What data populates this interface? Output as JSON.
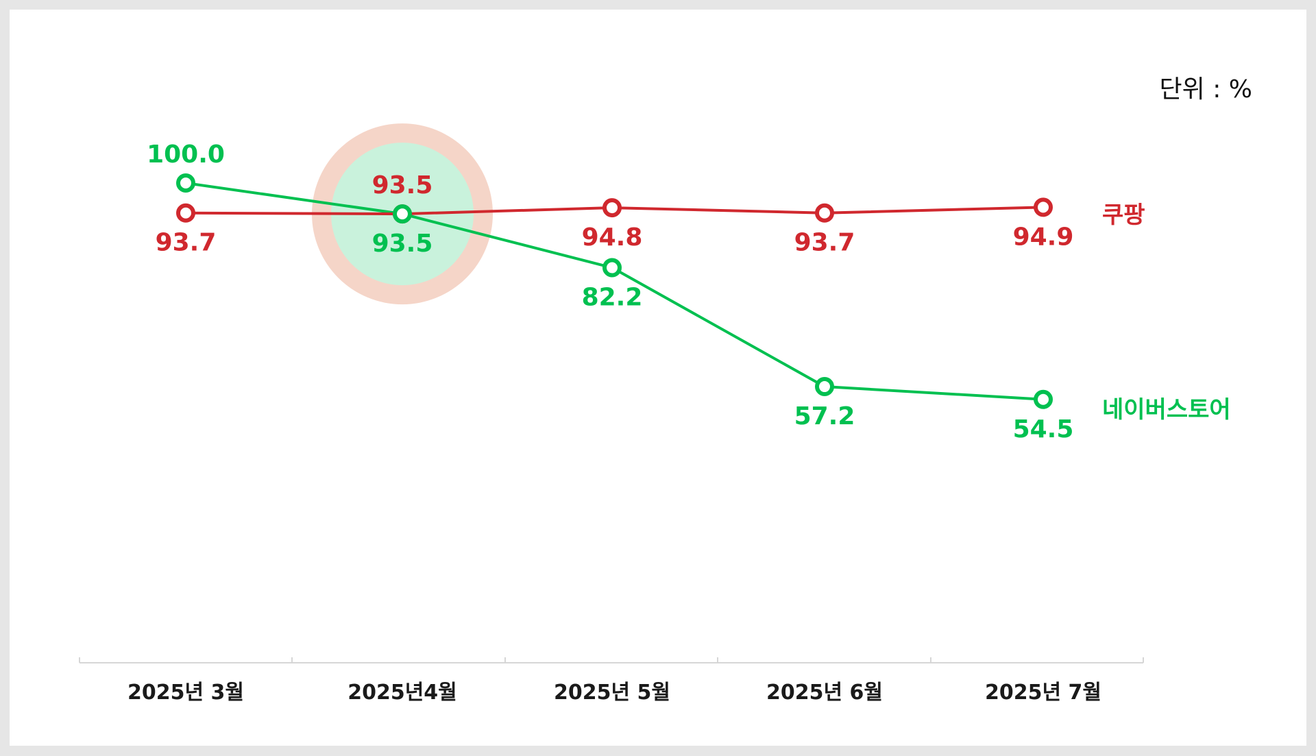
{
  "chart_data": {
    "type": "line",
    "unit_label": "단위 : %",
    "categories": [
      "2025년 3월",
      "2025년4월",
      "2025년 5월",
      "2025년 6월",
      "2025년 7월"
    ],
    "series": [
      {
        "name": "쿠팡",
        "color": "#d0282e",
        "values": [
          93.7,
          93.5,
          94.8,
          93.7,
          94.9
        ],
        "value_labels": [
          "93.7",
          "93.5",
          "94.8",
          "93.7",
          "94.9"
        ],
        "label_placement": [
          "below",
          "above",
          "below",
          "below",
          "below"
        ]
      },
      {
        "name": "네이버스토어",
        "color": "#00c050",
        "values": [
          100.0,
          93.5,
          82.2,
          57.2,
          54.5
        ],
        "value_labels": [
          "100.0",
          "93.5",
          "82.2",
          "57.2",
          "54.5"
        ],
        "label_placement": [
          "above",
          "below",
          "below",
          "below",
          "below"
        ]
      }
    ],
    "highlight": {
      "category": "2025년4월",
      "outer_color": "#f5d5c8",
      "inner_color": "#c9f2dc"
    },
    "ylim": [
      54.5,
      100
    ],
    "grid": false,
    "legend_placement": "right-inline"
  }
}
